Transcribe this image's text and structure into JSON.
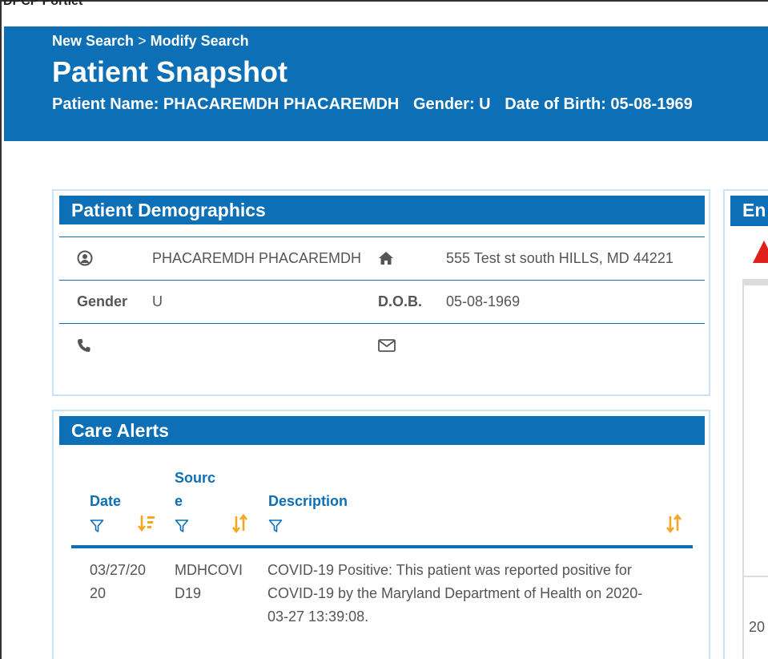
{
  "portlet": {
    "title": "DPCP Portlet"
  },
  "header": {
    "breadcrumb_new": "New Search",
    "breadcrumb_sep": ">",
    "breadcrumb_modify": "Modify Search",
    "title": "Patient Snapshot",
    "patient_name": "Patient Name: PHACAREMDH PHACAREMDH",
    "gender": "Gender: U",
    "dob": "Date of Birth: 05-08-1969",
    "color": "#0d6fb5"
  },
  "demographics": {
    "heading": "Patient Demographics",
    "name": "PHACAREMDH PHACAREMDH",
    "address": "555 Test st south HILLS, MD 44221",
    "gender_label": "Gender",
    "gender_value": "U",
    "dob_label": "D.O.B.",
    "dob_value": "05-08-1969",
    "icons": [
      "user-circle-icon",
      "home-icon",
      "phone-icon",
      "envelope-icon"
    ]
  },
  "care_alerts": {
    "heading": "Care Alerts",
    "columns": {
      "date": "Date",
      "source_line1": "Sourc",
      "source_line2": "e",
      "description": "Description"
    },
    "rows": [
      {
        "date_line1": "03/27/20",
        "date_line2": "20",
        "source_line1": "MDHCOVI",
        "source_line2": "D19",
        "desc_line1": "COVID-19 Positive: This patient was reported positive for",
        "desc_line2": "COVID-19 by the Maryland Department of Health on 2020-",
        "desc_line3": "03-27 13:39:08."
      }
    ],
    "accent_sort_color": "#f5a623"
  },
  "right_panel": {
    "heading_partial": "En",
    "cell_partial": "20",
    "warning_color": "#e0201b"
  }
}
